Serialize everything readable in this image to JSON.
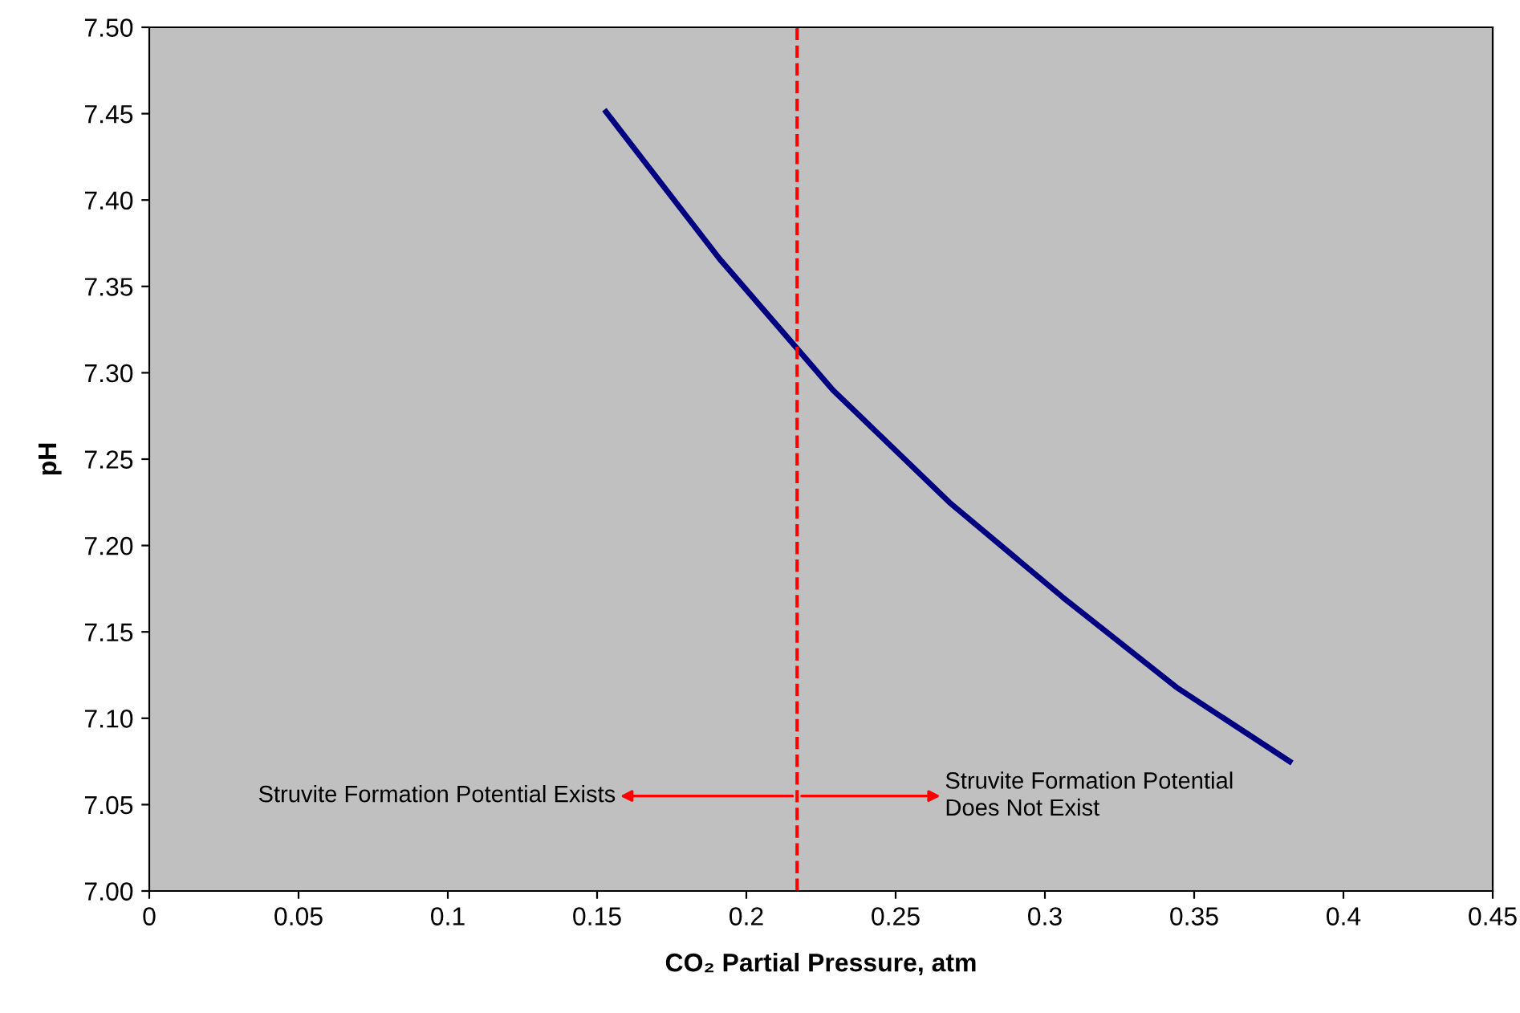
{
  "chart_data": {
    "type": "line",
    "xlabel": "CO₂ Partial Pressure, atm",
    "ylabel": "pH",
    "x": [
      0.153,
      0.191,
      0.229,
      0.268,
      0.306,
      0.344,
      0.382
    ],
    "series": [
      {
        "color": "#000080",
        "values": [
          7.451,
          7.366,
          7.29,
          7.225,
          7.17,
          7.118,
          7.075
        ]
      }
    ],
    "xlim": [
      0,
      0.45
    ],
    "ylim": [
      7.0,
      7.5
    ],
    "xticks": [
      0,
      0.05,
      0.1,
      0.15,
      0.2,
      0.25,
      0.3,
      0.35,
      0.4,
      0.45
    ],
    "yticks": [
      {
        "value": 7.0,
        "label": "7.00"
      },
      {
        "value": 7.05,
        "label": "7.05"
      },
      {
        "value": 7.1,
        "label": "7.10"
      },
      {
        "value": 7.15,
        "label": "7.15"
      },
      {
        "value": 7.2,
        "label": "7.20"
      },
      {
        "value": 7.25,
        "label": "7.25"
      },
      {
        "value": 7.3,
        "label": "7.30"
      },
      {
        "value": 7.35,
        "label": "7.35"
      },
      {
        "value": 7.4,
        "label": "7.40"
      },
      {
        "value": 7.45,
        "label": "7.45"
      },
      {
        "value": 7.5,
        "label": "7.50"
      }
    ],
    "ref_lines": [
      {
        "axis": "x",
        "value": 0.217,
        "color": "#ff0000",
        "line_style": "dashed"
      }
    ],
    "annotations": [
      "Struvite Formation Potential Exists",
      "Struvite Formation Potential\nDoes Not Exist"
    ],
    "grid": false,
    "legend": false,
    "marker": "none",
    "line_style": "solid"
  }
}
